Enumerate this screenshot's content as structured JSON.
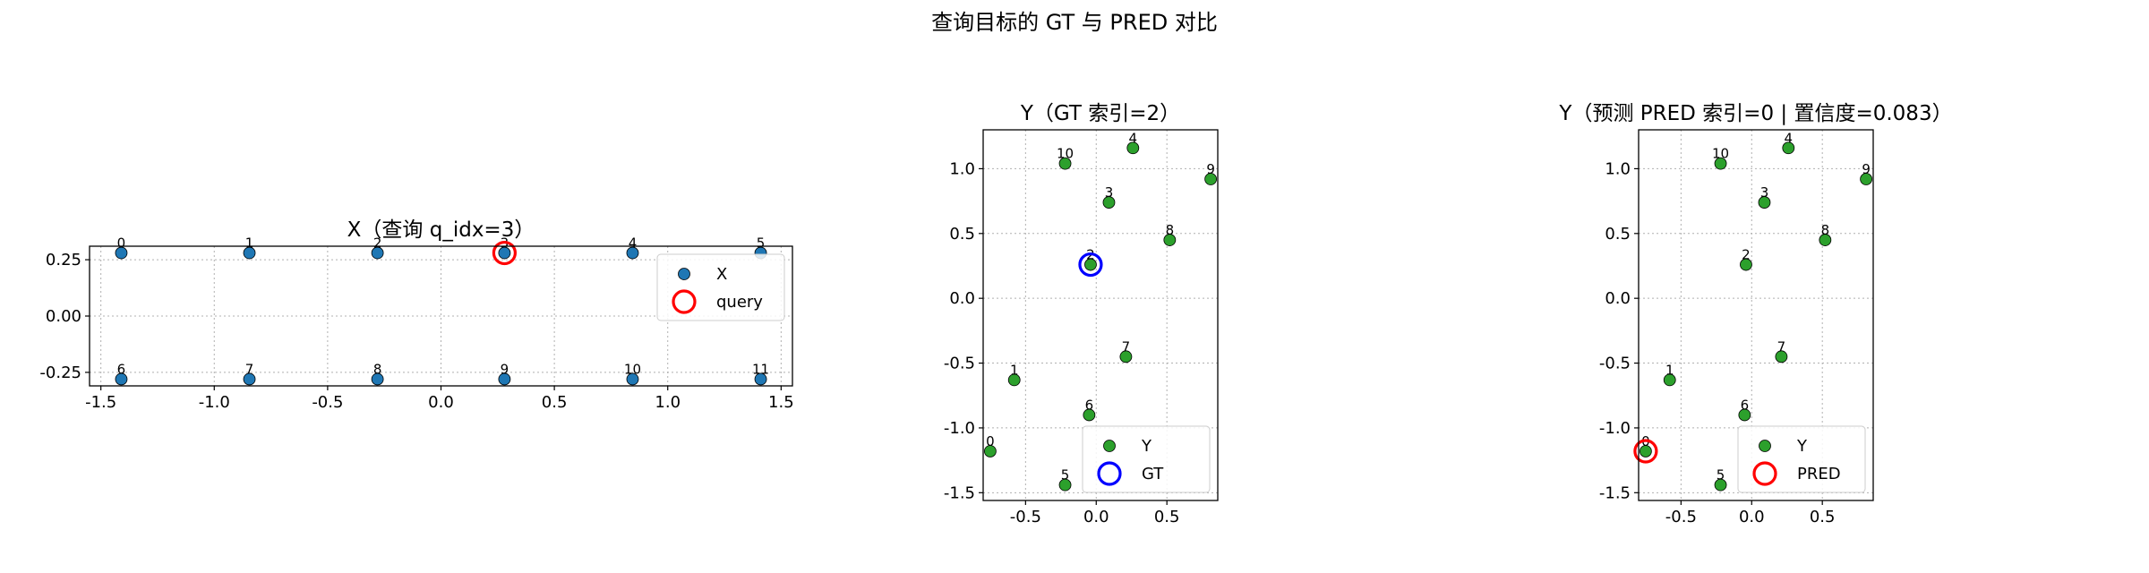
{
  "suptitle": "查询目标的 GT 与 PRED 对比",
  "chart_data": [
    {
      "type": "scatter",
      "title": "X（查询 q_idx=3）",
      "xlim": [
        -1.55,
        1.55
      ],
      "ylim": [
        -0.31,
        0.31
      ],
      "xticks": [
        -1.5,
        -1.0,
        -0.5,
        0.0,
        0.5,
        1.0,
        1.5
      ],
      "xtick_labels": [
        "-1.5",
        "-1.0",
        "-0.5",
        "0.0",
        "0.5",
        "1.0",
        "1.5"
      ],
      "yticks": [
        -0.25,
        0.0,
        0.25
      ],
      "ytick_labels": [
        "-0.25",
        "0.00",
        "0.25"
      ],
      "grid": true,
      "legend_position": "upper-right",
      "series": [
        {
          "name": "X",
          "color": "#1f77b4",
          "points": [
            {
              "label": "0",
              "x": -1.41,
              "y": 0.28
            },
            {
              "label": "1",
              "x": -0.845,
              "y": 0.28
            },
            {
              "label": "2",
              "x": -0.28,
              "y": 0.28
            },
            {
              "label": "3",
              "x": 0.28,
              "y": 0.28
            },
            {
              "label": "4",
              "x": 0.845,
              "y": 0.28
            },
            {
              "label": "5",
              "x": 1.41,
              "y": 0.28
            },
            {
              "label": "6",
              "x": -1.41,
              "y": -0.28
            },
            {
              "label": "7",
              "x": -0.845,
              "y": -0.28
            },
            {
              "label": "8",
              "x": -0.28,
              "y": -0.28
            },
            {
              "label": "9",
              "x": 0.28,
              "y": -0.28
            },
            {
              "label": "10",
              "x": 0.845,
              "y": -0.28
            },
            {
              "label": "11",
              "x": 1.41,
              "y": -0.28
            }
          ]
        }
      ],
      "markers": [
        {
          "name": "query",
          "color": "#ff0000",
          "x": 0.28,
          "y": 0.28
        }
      ]
    },
    {
      "type": "scatter",
      "title": "Y（GT 索引=2）",
      "xlim": [
        -0.8,
        0.86
      ],
      "ylim": [
        -1.56,
        1.3
      ],
      "xticks": [
        -0.5,
        0.0,
        0.5
      ],
      "xtick_labels": [
        "-0.5",
        "0.0",
        "0.5"
      ],
      "yticks": [
        -1.5,
        -1.0,
        -0.5,
        0.0,
        0.5,
        1.0
      ],
      "ytick_labels": [
        "-1.5",
        "-1.0",
        "-0.5",
        "0.0",
        "0.5",
        "1.0"
      ],
      "grid": true,
      "legend_position": "lower-right",
      "series": [
        {
          "name": "Y",
          "color": "#2ca02c",
          "points": [
            {
              "label": "0",
              "x": -0.75,
              "y": -1.18
            },
            {
              "label": "1",
              "x": -0.58,
              "y": -0.63
            },
            {
              "label": "2",
              "x": -0.04,
              "y": 0.26
            },
            {
              "label": "3",
              "x": 0.09,
              "y": 0.74
            },
            {
              "label": "4",
              "x": 0.26,
              "y": 1.16
            },
            {
              "label": "5",
              "x": -0.22,
              "y": -1.44
            },
            {
              "label": "6",
              "x": -0.05,
              "y": -0.9
            },
            {
              "label": "7",
              "x": 0.21,
              "y": -0.45
            },
            {
              "label": "8",
              "x": 0.52,
              "y": 0.45
            },
            {
              "label": "9",
              "x": 0.81,
              "y": 0.92
            },
            {
              "label": "10",
              "x": -0.22,
              "y": 1.04
            }
          ]
        }
      ],
      "markers": [
        {
          "name": "GT",
          "color": "#0000ff",
          "x": -0.04,
          "y": 0.26
        }
      ]
    },
    {
      "type": "scatter",
      "title": "Y（预测 PRED 索引=0 | 置信度=0.083）",
      "xlim": [
        -0.8,
        0.86
      ],
      "ylim": [
        -1.56,
        1.3
      ],
      "xticks": [
        -0.5,
        0.0,
        0.5
      ],
      "xtick_labels": [
        "-0.5",
        "0.0",
        "0.5"
      ],
      "yticks": [
        -1.5,
        -1.0,
        -0.5,
        0.0,
        0.5,
        1.0
      ],
      "ytick_labels": [
        "-1.5",
        "-1.0",
        "-0.5",
        "0.0",
        "0.5",
        "1.0"
      ],
      "grid": true,
      "legend_position": "lower-right",
      "series": [
        {
          "name": "Y",
          "color": "#2ca02c",
          "points": [
            {
              "label": "0",
              "x": -0.75,
              "y": -1.18
            },
            {
              "label": "1",
              "x": -0.58,
              "y": -0.63
            },
            {
              "label": "2",
              "x": -0.04,
              "y": 0.26
            },
            {
              "label": "3",
              "x": 0.09,
              "y": 0.74
            },
            {
              "label": "4",
              "x": 0.26,
              "y": 1.16
            },
            {
              "label": "5",
              "x": -0.22,
              "y": -1.44
            },
            {
              "label": "6",
              "x": -0.05,
              "y": -0.9
            },
            {
              "label": "7",
              "x": 0.21,
              "y": -0.45
            },
            {
              "label": "8",
              "x": 0.52,
              "y": 0.45
            },
            {
              "label": "9",
              "x": 0.81,
              "y": 0.92
            },
            {
              "label": "10",
              "x": -0.22,
              "y": 1.04
            }
          ]
        }
      ],
      "markers": [
        {
          "name": "PRED",
          "color": "#ff0000",
          "x": -0.75,
          "y": -1.18
        }
      ]
    }
  ]
}
